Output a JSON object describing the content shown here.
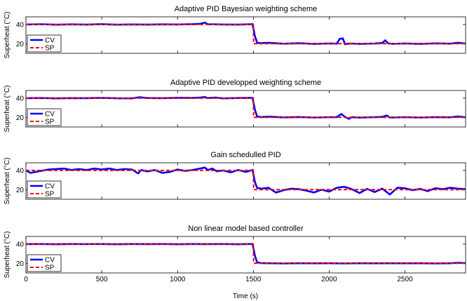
{
  "colors": {
    "cv": "#0000ff",
    "sp": "#ff0000",
    "axis": "#000000"
  },
  "xlabel": "Time (s)",
  "chart_data": [
    {
      "type": "line",
      "title": "Adaptive PID Bayesian weighting scheme",
      "ylabel": "Superheat (°C)",
      "xlim": [
        0,
        2900
      ],
      "ylim": [
        10,
        48
      ],
      "yticks": [
        20,
        40
      ],
      "legend": "left",
      "series": [
        {
          "name": "CV",
          "x": [
            0,
            100,
            200,
            300,
            400,
            500,
            600,
            700,
            800,
            900,
            1000,
            1100,
            1150,
            1180,
            1200,
            1250,
            1300,
            1400,
            1495,
            1510,
            1525,
            1550,
            1600,
            1700,
            1800,
            1900,
            2000,
            2050,
            2070,
            2090,
            2105,
            2120,
            2150,
            2200,
            2300,
            2350,
            2370,
            2390,
            2420,
            2500,
            2600,
            2700,
            2800,
            2850,
            2900
          ],
          "y": [
            40,
            40.3,
            39.8,
            40.2,
            39.9,
            40.4,
            39.8,
            40.1,
            39.9,
            40.2,
            40,
            40.4,
            40.8,
            42,
            40.3,
            40.2,
            40,
            39.9,
            40.3,
            28,
            21,
            20.5,
            21,
            20,
            20.5,
            19.8,
            20.3,
            20.1,
            25,
            25.5,
            19.5,
            20,
            20.2,
            19.8,
            20.2,
            20.8,
            23.5,
            20.3,
            19.9,
            20.3,
            19.8,
            20.4,
            20.1,
            21,
            20.2
          ]
        },
        {
          "name": "SP",
          "x": [
            0,
            1500,
            1502,
            2900
          ],
          "y": [
            40,
            40,
            20,
            20
          ]
        }
      ]
    },
    {
      "type": "line",
      "title": "Adaptive PID developped weighting scheme",
      "ylabel": "Superheat (°C)",
      "xlim": [
        0,
        2900
      ],
      "ylim": [
        10,
        48
      ],
      "yticks": [
        20,
        40
      ],
      "legend": "left",
      "series": [
        {
          "name": "CV",
          "x": [
            0,
            100,
            200,
            300,
            400,
            500,
            600,
            700,
            750,
            800,
            900,
            1000,
            1100,
            1150,
            1180,
            1200,
            1250,
            1300,
            1400,
            1495,
            1510,
            1525,
            1550,
            1600,
            1700,
            1800,
            1900,
            2000,
            2050,
            2080,
            2100,
            2130,
            2150,
            2200,
            2300,
            2350,
            2380,
            2400,
            2500,
            2600,
            2700,
            2800,
            2850,
            2900
          ],
          "y": [
            40,
            40.2,
            39.8,
            40.1,
            40,
            40.3,
            39.9,
            39.8,
            41,
            40.2,
            40,
            40.4,
            40.3,
            40.6,
            41.2,
            40.2,
            40.6,
            39.8,
            40.2,
            40.4,
            28,
            21,
            20.3,
            20.8,
            20,
            20.4,
            19.9,
            20.2,
            20.3,
            23.5,
            21,
            18.5,
            20.2,
            19.8,
            20.2,
            20.5,
            22,
            19.8,
            20.2,
            19.9,
            20.3,
            20.1,
            21,
            20.1
          ]
        },
        {
          "name": "SP",
          "x": [
            0,
            1500,
            1502,
            2900
          ],
          "y": [
            40,
            40,
            20,
            20
          ]
        }
      ]
    },
    {
      "type": "line",
      "title": "Gain schedulled PID",
      "ylabel": "Superheat (°C)",
      "xlim": [
        0,
        2900
      ],
      "ylim": [
        10,
        48
      ],
      "yticks": [
        20,
        40
      ],
      "legend": "left",
      "series": [
        {
          "name": "CV",
          "x": [
            0,
            30,
            80,
            150,
            200,
            250,
            300,
            350,
            400,
            450,
            500,
            550,
            600,
            650,
            700,
            740,
            760,
            800,
            850,
            900,
            950,
            1000,
            1050,
            1100,
            1150,
            1180,
            1200,
            1230,
            1260,
            1300,
            1350,
            1400,
            1450,
            1495,
            1510,
            1525,
            1550,
            1600,
            1650,
            1700,
            1750,
            1800,
            1850,
            1900,
            1950,
            2000,
            2050,
            2100,
            2150,
            2200,
            2250,
            2300,
            2350,
            2400,
            2450,
            2500,
            2550,
            2600,
            2650,
            2700,
            2750,
            2800,
            2850,
            2900
          ],
          "y": [
            40,
            37.5,
            39,
            41,
            41.5,
            42,
            40.5,
            41.5,
            40.5,
            42,
            41,
            42,
            40.5,
            41.5,
            41,
            37,
            40.5,
            39,
            40.5,
            37.5,
            38.5,
            41,
            39.5,
            40.5,
            42,
            43,
            40.5,
            42,
            39,
            40,
            38,
            40.5,
            38.5,
            40.5,
            28,
            22,
            21,
            22,
            17,
            19.5,
            21,
            20.5,
            19,
            17,
            20,
            18,
            22,
            23,
            20.5,
            16.5,
            20.8,
            17.5,
            21,
            15,
            22,
            21.5,
            19.5,
            20.8,
            18.5,
            21.5,
            20.5,
            22,
            21,
            20.5
          ]
        },
        {
          "name": "SP",
          "x": [
            0,
            1500,
            1502,
            2900
          ],
          "y": [
            40,
            40,
            20,
            20
          ]
        }
      ]
    },
    {
      "type": "line",
      "title": "Non linear model based controller",
      "ylabel": "Superheat (°C)",
      "xlim": [
        0,
        2900
      ],
      "ylim": [
        10,
        48
      ],
      "yticks": [
        20,
        40
      ],
      "xticks": [
        0,
        500,
        1000,
        1500,
        2000,
        2500
      ],
      "legend": "left",
      "series": [
        {
          "name": "CV",
          "x": [
            0,
            100,
            200,
            300,
            400,
            500,
            600,
            700,
            800,
            900,
            1000,
            1100,
            1200,
            1300,
            1400,
            1495,
            1510,
            1525,
            1550,
            1600,
            1700,
            1800,
            1900,
            2000,
            2100,
            2200,
            2300,
            2400,
            2500,
            2600,
            2700,
            2800,
            2850,
            2900
          ],
          "y": [
            40,
            40.1,
            39.9,
            40.1,
            40,
            40.1,
            39.9,
            40.1,
            40,
            40.1,
            39.9,
            40.1,
            40,
            40.1,
            39.9,
            40.2,
            28,
            21,
            20.3,
            20.1,
            19.9,
            20.1,
            20,
            20.1,
            19.9,
            20.1,
            20,
            20.1,
            20,
            20.1,
            19.9,
            20.1,
            20.6,
            20.2
          ]
        },
        {
          "name": "SP",
          "x": [
            0,
            1500,
            1502,
            2900
          ],
          "y": [
            40,
            40,
            20,
            20
          ]
        }
      ]
    }
  ]
}
